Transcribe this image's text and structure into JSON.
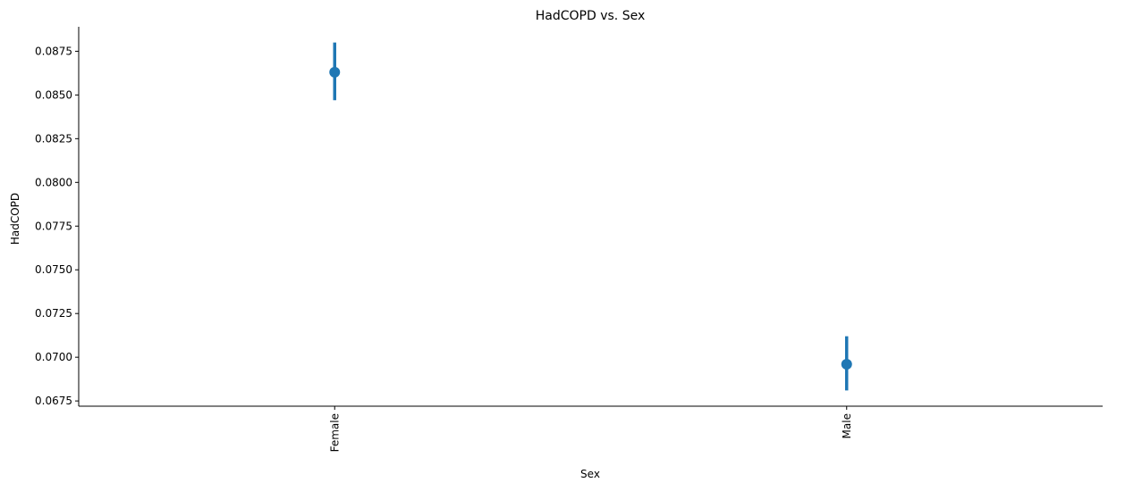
{
  "chart_data": {
    "type": "pointplot",
    "title": "HadCOPD vs. Sex",
    "xlabel": "Sex",
    "ylabel": "HadCOPD",
    "categories": [
      "Female",
      "Male"
    ],
    "series": [
      {
        "values": [
          0.0863,
          0.0696
        ],
        "ci_low": [
          0.0847,
          0.0681
        ],
        "ci_high": [
          0.088,
          0.0712
        ],
        "color": "#1f77b4"
      }
    ],
    "ylim": [
      0.0672,
      0.0889
    ],
    "yticks": [
      0.0675,
      0.07,
      0.0725,
      0.075,
      0.0775,
      0.08,
      0.0825,
      0.085,
      0.0875
    ],
    "ytick_labels": [
      "0.0675",
      "0.0700",
      "0.0725",
      "0.0750",
      "0.0775",
      "0.0800",
      "0.0825",
      "0.0850",
      "0.0875"
    ],
    "grid": false,
    "spines": [
      "left",
      "bottom"
    ]
  }
}
